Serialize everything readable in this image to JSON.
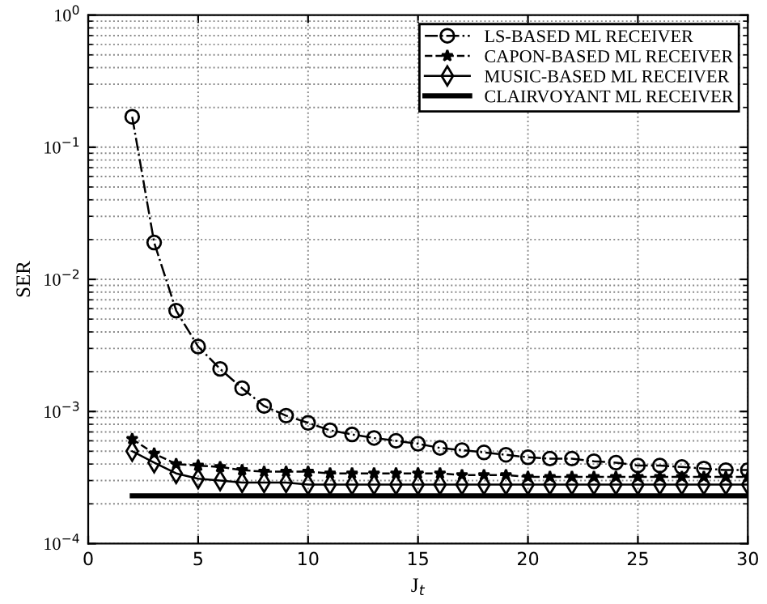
{
  "chart_data": {
    "type": "line",
    "xlabel": "J$_{t}$",
    "ylabel": "SER",
    "log": "y",
    "grid": true,
    "legend": "top right",
    "x": [
      2,
      3,
      4,
      5,
      6,
      7,
      8,
      9,
      10,
      11,
      12,
      13,
      14,
      15,
      16,
      17,
      18,
      19,
      20,
      21,
      22,
      23,
      24,
      25,
      26,
      27,
      28,
      29,
      30
    ],
    "xlim": [
      0,
      30
    ],
    "xticks": [
      0,
      5,
      10,
      15,
      20,
      25,
      30
    ],
    "ylim": [
      0.0001,
      1
    ],
    "yticks": [
      {
        "value": 0.0001,
        "label": "10$^{−4}$"
      },
      {
        "value": 0.001,
        "label": "10$^{−3}$"
      },
      {
        "value": 0.01,
        "label": "10$^{−2}$"
      },
      {
        "value": 0.1,
        "label": "10$^{−1}$"
      },
      {
        "value": 1,
        "label": "10$^{0}$"
      }
    ],
    "series": [
      {
        "name": "LS-BASED ML RECEIVER",
        "color": "#000000",
        "marker": "circle",
        "line_style": "dashdot",
        "values": [
          0.17,
          0.019,
          0.0058,
          0.0031,
          0.0021,
          0.0015,
          0.0011,
          0.00093,
          0.00082,
          0.00072,
          0.00067,
          0.00063,
          0.0006,
          0.00057,
          0.00053,
          0.00051,
          0.00049,
          0.00047,
          0.00045,
          0.00044,
          0.00044,
          0.00042,
          0.00041,
          0.00039,
          0.00039,
          0.00038,
          0.00037,
          0.00036,
          0.00036
        ]
      },
      {
        "name": "CAPON-BASED ML RECEIVER",
        "color": "#000000",
        "marker": "star",
        "line_style": "dashed",
        "values": [
          0.00062,
          0.00048,
          0.0004,
          0.00039,
          0.00038,
          0.00036,
          0.00035,
          0.00035,
          0.00035,
          0.00034,
          0.00034,
          0.00034,
          0.00034,
          0.00034,
          0.00034,
          0.00033,
          0.00033,
          0.00033,
          0.00032,
          0.00032,
          0.00032,
          0.00032,
          0.00032,
          0.00032,
          0.00032,
          0.00032,
          0.00032,
          0.00032,
          0.00032
        ]
      },
      {
        "name": "MUSIC-BASED ML RECEIVER",
        "color": "#000000",
        "marker": "diamond",
        "line_style": "solid",
        "values": [
          0.0005,
          0.00041,
          0.00034,
          0.00031,
          0.0003,
          0.00029,
          0.00029,
          0.00029,
          0.00028,
          0.00028,
          0.00028,
          0.00028,
          0.00028,
          0.00028,
          0.00028,
          0.00028,
          0.00028,
          0.00028,
          0.00028,
          0.00028,
          0.00028,
          0.00028,
          0.00028,
          0.00028,
          0.00028,
          0.00028,
          0.00028,
          0.00028,
          0.00028
        ]
      },
      {
        "name": "CLAIRVOYANT ML RECEIVER",
        "color": "#000000",
        "marker": "none",
        "line_style": "solid",
        "values": [
          0.00023,
          0.00023,
          0.00023,
          0.00023,
          0.00023,
          0.00023,
          0.00023,
          0.00023,
          0.00023,
          0.00023,
          0.00023,
          0.00023,
          0.00023,
          0.00023,
          0.00023,
          0.00023,
          0.00023,
          0.00023,
          0.00023,
          0.00023,
          0.00023,
          0.00023,
          0.00023,
          0.00023,
          0.00023,
          0.00023,
          0.00023,
          0.00023,
          0.00023
        ]
      }
    ]
  }
}
